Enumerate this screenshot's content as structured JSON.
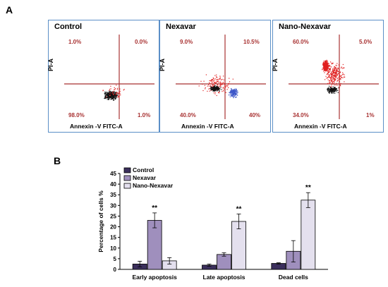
{
  "panel_a": "A",
  "panel_b": "B",
  "colors": {
    "frame": "#5b8fc7",
    "quadrant": "#a83232",
    "blue_dots": "#3a55c8",
    "red_dots": "#e02020"
  },
  "facs": [
    {
      "title": "Control",
      "q_ul": "1.0%",
      "q_ur": "0.0%",
      "q_ll": "98.0%",
      "q_lr": "1.0%",
      "ylabel": "PI-A",
      "xlabel": "Annexin -V FITC-A"
    },
    {
      "title": "Nexavar",
      "q_ul": "9.0%",
      "q_ur": "10.5%",
      "q_ll": "40.0%",
      "q_lr": "40%",
      "ylabel": "PI-A",
      "xlabel": "Annexin -V FITC-A"
    },
    {
      "title": "Nano-Nexavar",
      "q_ul": "60.0%",
      "q_ur": "5.0%",
      "q_ll": "34.0%",
      "q_lr": "1%",
      "ylabel": "PI-A",
      "xlabel": "Annexin -V FITC-A"
    }
  ],
  "chart_data": {
    "type": "bar",
    "categories": [
      "Early apoptosis",
      "Late apoptosis",
      "Dead cells"
    ],
    "ylabel": "Percentage of cells %",
    "ylim": [
      0,
      45
    ],
    "yticks": [
      0,
      5,
      10,
      15,
      20,
      25,
      30,
      35,
      40,
      45
    ],
    "legend_position": "top-left",
    "series": [
      {
        "name": "Control",
        "color": "#3b2f5c",
        "values": [
          2.5,
          2.0,
          2.8
        ],
        "errors": [
          1.3,
          0.5,
          0.3
        ]
      },
      {
        "name": "Nexavar",
        "color": "#9f8fbd",
        "values": [
          23.0,
          7.0,
          8.5
        ],
        "errors": [
          3.5,
          0.8,
          5.0
        ]
      },
      {
        "name": "Nano-Nexavar",
        "color": "#e4e0ee",
        "values": [
          4.0,
          22.5,
          32.5
        ],
        "errors": [
          1.5,
          3.5,
          3.5
        ]
      }
    ],
    "annotations": [
      {
        "category": "Early apoptosis",
        "series": "Nexavar",
        "text": "**"
      },
      {
        "category": "Late apoptosis",
        "series": "Nano-Nexavar",
        "text": "**"
      },
      {
        "category": "Dead cells",
        "series": "Nano-Nexavar",
        "text": "**"
      }
    ]
  }
}
